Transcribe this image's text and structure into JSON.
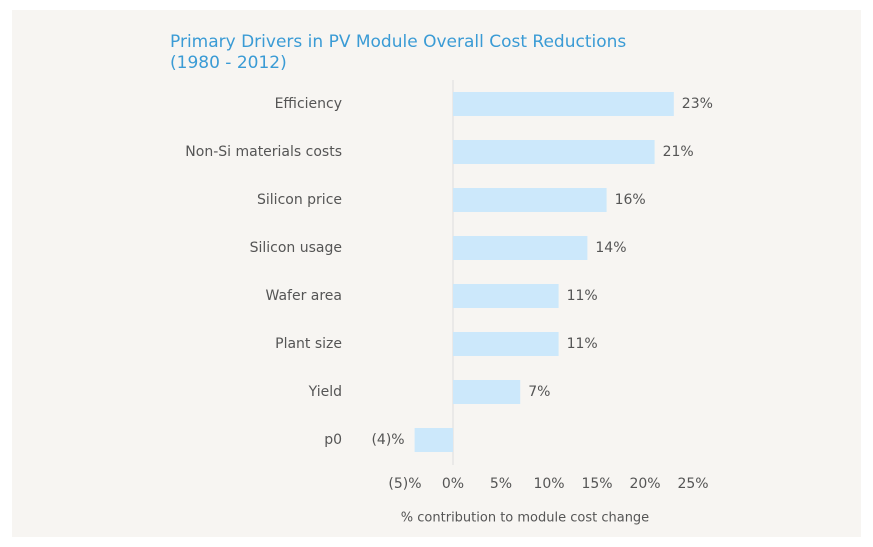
{
  "chart_data": {
    "type": "barh",
    "title": "Primary Drivers in PV Module Overall Cost Reductions (1980 - 2012)",
    "x_label": "% contribution to module cost change",
    "categories": [
      "Efficiency",
      "Non-Si materials costs",
      "Silicon price",
      "Silicon usage",
      "Wafer area",
      "Plant size",
      "Yield",
      "p0"
    ],
    "values": [
      23,
      21,
      16,
      14,
      11,
      11,
      7,
      -4
    ],
    "value_labels": [
      "23%",
      "21%",
      "16%",
      "14%",
      "11%",
      "11%",
      "7%",
      "(4)%"
    ],
    "color": "#cce8fb",
    "xlim": [
      -5,
      25
    ],
    "xticks": [
      {
        "value": -5,
        "label": "(5)%"
      },
      {
        "value": 0,
        "label": "0%"
      },
      {
        "value": 5,
        "label": "5%"
      },
      {
        "value": 10,
        "label": "10%"
      },
      {
        "value": 15,
        "label": "15%"
      },
      {
        "value": 20,
        "label": "20%"
      },
      {
        "value": 25,
        "label": "25%"
      }
    ]
  }
}
